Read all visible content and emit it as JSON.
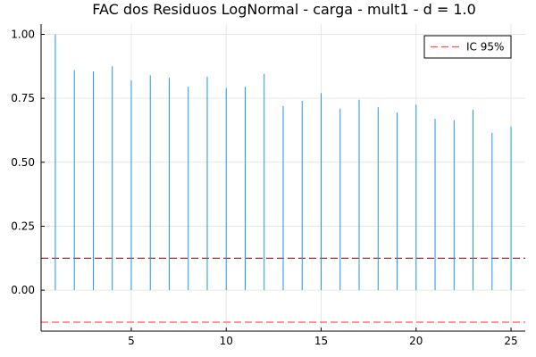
{
  "chart_data": {
    "type": "bar",
    "title": "FAC dos Residuos  LogNormal - carga - mult1 - d = 1.0",
    "xlabel": "",
    "ylabel": "",
    "x": [
      1,
      2,
      3,
      4,
      5,
      6,
      7,
      8,
      9,
      10,
      11,
      12,
      13,
      14,
      15,
      16,
      17,
      18,
      19,
      20,
      21,
      22,
      23,
      24,
      25
    ],
    "values": [
      1.0,
      0.86,
      0.855,
      0.875,
      0.82,
      0.84,
      0.83,
      0.795,
      0.835,
      0.79,
      0.795,
      0.845,
      0.72,
      0.74,
      0.77,
      0.71,
      0.745,
      0.715,
      0.695,
      0.725,
      0.67,
      0.665,
      0.705,
      0.615,
      0.64
    ],
    "xlim": [
      0.25,
      25.75
    ],
    "ylim": [
      -0.16,
      1.04
    ],
    "xticks": [
      5,
      10,
      15,
      20,
      25
    ],
    "yticks": [
      0.0,
      0.25,
      0.5,
      0.75,
      1.0
    ],
    "xtick_labels": [
      "5",
      "10",
      "15",
      "20",
      "25"
    ],
    "ytick_labels": [
      "0.00",
      "0.25",
      "0.50",
      "0.75",
      "1.00"
    ],
    "ci_upper": 0.125,
    "ci_lower": -0.125,
    "grid": true,
    "legend": {
      "position": "top-right",
      "entries": [
        {
          "label": "IC 95%",
          "style": "dashed",
          "color": "#ff5555"
        }
      ]
    },
    "colors": {
      "stem": "#1a99e8",
      "ci_upper": "#8b1a1a",
      "ci_lower": "#ff5555",
      "grid": "#e6e6e6"
    }
  }
}
